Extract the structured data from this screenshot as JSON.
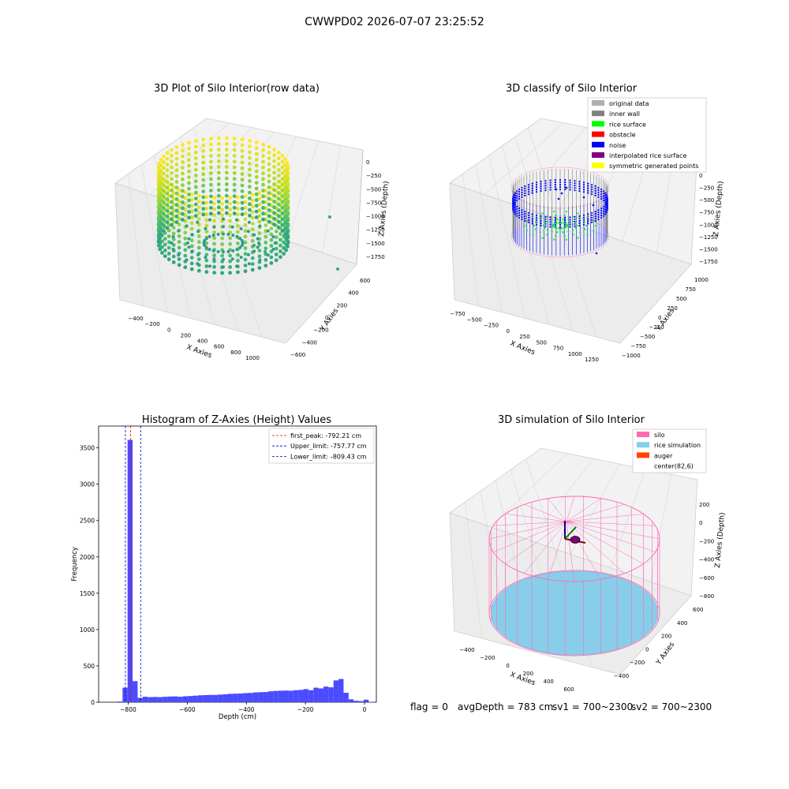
{
  "figure": {
    "suptitle": "CWWPD02 2026-07-07 23:25:52",
    "footer": {
      "flag": "flag = 0",
      "avg_depth": "avgDepth = 783 cm",
      "sv1": "sv1 = 700~2300",
      "sv2": "sv2 = 700~2300"
    }
  },
  "colors": {
    "hist_bar": "#4b4bff",
    "first_peak": "#ff0000",
    "limits": "#0000cc",
    "original_data": "#b0b0b0",
    "inner_wall": "#808080",
    "rice_surface": "#00ff00",
    "obstacle": "#ff0000",
    "noise": "#0000ff",
    "interpolated_rice_surface": "#800080",
    "symmetric_generated_points": "#ffff00",
    "silo": "#ff69b4",
    "rice_simulation": "#87ceeb",
    "auger": "#ff4500"
  },
  "chart_data": [
    {
      "type": "scatter",
      "title": "3D Plot of Silo Interior(row data)",
      "xlabel": "X Axies",
      "ylabel": "Y Axies",
      "zlabel": "Z Axies (Depth)",
      "x_ticks": [
        "−400",
        "−200",
        "0",
        "200",
        "400",
        "600",
        "800",
        "1000"
      ],
      "y_ticks": [
        "−600",
        "−400",
        "−200",
        "0",
        "200",
        "400",
        "600"
      ],
      "z_ticks": [
        "0",
        "−250",
        "−500",
        "−750",
        "−1000",
        "−1250",
        "−1500",
        "−1750"
      ],
      "colormap": "viridis (by depth)"
    },
    {
      "type": "scatter",
      "title": "3D classify of Silo Interior",
      "xlabel": "X Axies",
      "ylabel": "Y Axies",
      "zlabel": "Z Axies (Depth)",
      "x_ticks": [
        "−750",
        "−500",
        "−250",
        "0",
        "250",
        "500",
        "750",
        "1000",
        "1250"
      ],
      "y_ticks": [
        "−1000",
        "−750",
        "−500",
        "−250",
        "0",
        "250",
        "500",
        "750",
        "1000"
      ],
      "z_ticks": [
        "0",
        "−250",
        "−500",
        "−750",
        "−1000",
        "−1250",
        "−1500",
        "−1750"
      ],
      "legend": [
        "original data",
        "inner wall",
        "rice surface",
        "obstacle",
        "noise",
        "interpolated rice surface",
        "symmetric generated points"
      ],
      "legend_position": "top-right"
    },
    {
      "type": "bar",
      "title": "Histogram of Z-Axies (Height) Values",
      "xlabel": "Depth (cm)",
      "ylabel": "Frequency",
      "xlim": [
        -900,
        40
      ],
      "ylim": [
        0,
        3800
      ],
      "x_ticks": [
        -800,
        -600,
        -400,
        -200,
        0
      ],
      "x_tick_labels": [
        "−800",
        "−600",
        "−400",
        "−200",
        "0"
      ],
      "y_ticks": [
        0,
        500,
        1000,
        1500,
        2000,
        2500,
        3000,
        3500
      ],
      "y_tick_labels": [
        "0",
        "500",
        "1000",
        "1500",
        "2000",
        "2500",
        "3000",
        "3500"
      ],
      "bin_width": 17,
      "bin_centers": [
        -827.5,
        -810.5,
        -793.5,
        -776.5,
        -759.5,
        -742.5,
        -725.5,
        -708.5,
        -691.5,
        -674.5,
        -657.5,
        -640.5,
        -623.5,
        -606.5,
        -589.5,
        -572.5,
        -555.5,
        -538.5,
        -521.5,
        -504.5,
        -487.5,
        -470.5,
        -453.5,
        -436.5,
        -419.5,
        -402.5,
        -385.5,
        -368.5,
        -351.5,
        -334.5,
        -317.5,
        -300.5,
        -283.5,
        -266.5,
        -249.5,
        -232.5,
        -215.5,
        -198.5,
        -181.5,
        -164.5,
        -147.5,
        -130.5,
        -113.5,
        -96.5,
        -79.5,
        -62.5,
        -45.5,
        -28.5,
        -11.5,
        5.5,
        22.5
      ],
      "values": [
        10,
        200,
        3610,
        290,
        60,
        75,
        70,
        72,
        70,
        75,
        78,
        80,
        75,
        82,
        85,
        90,
        95,
        98,
        100,
        100,
        105,
        110,
        115,
        118,
        120,
        125,
        128,
        135,
        138,
        140,
        150,
        155,
        158,
        160,
        158,
        165,
        170,
        180,
        165,
        200,
        190,
        215,
        205,
        300,
        320,
        130,
        40,
        20,
        15,
        35,
        5
      ],
      "vlines": [
        {
          "label": "first_peak: -792.21 cm",
          "x": -792.21,
          "color_key": "first_peak"
        },
        {
          "label": "Upper_limit: -757.77 cm",
          "x": -757.77,
          "color_key": "limits"
        },
        {
          "label": "Lower_limit: -809.43 cm",
          "x": -809.43,
          "color_key": "limits"
        }
      ],
      "legend_position": "top-right"
    },
    {
      "type": "scatter",
      "title": "3D simulation of Silo Interior",
      "xlabel": "X Axies",
      "ylabel": "Y Axies",
      "zlabel": "Z Axies (Depth)",
      "x_ticks": [
        "−400",
        "−200",
        "0",
        "200",
        "400",
        "600"
      ],
      "y_ticks": [
        "−400",
        "−200",
        "0",
        "200",
        "400",
        "600"
      ],
      "z_ticks": [
        "200",
        "0",
        "−200",
        "−400",
        "−600",
        "−800"
      ],
      "legend": [
        "silo",
        "rice simulation",
        "auger",
        "center(82,6)"
      ],
      "legend_position": "top-right"
    }
  ]
}
